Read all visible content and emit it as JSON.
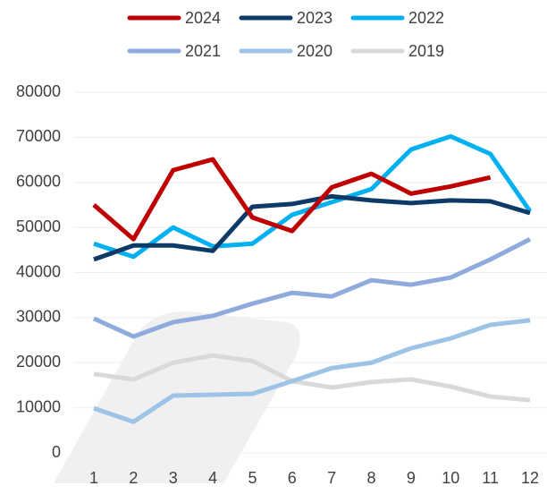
{
  "chart_data": {
    "type": "line",
    "categories": [
      "1",
      "2",
      "3",
      "4",
      "5",
      "6",
      "7",
      "8",
      "9",
      "10",
      "11",
      "12"
    ],
    "series": [
      {
        "name": "2024",
        "color": "#c00000",
        "values": [
          55000,
          47400,
          62700,
          65100,
          52200,
          49200,
          58900,
          61900,
          57500,
          59100,
          61100,
          null
        ]
      },
      {
        "name": "2023",
        "color": "#0e3a68",
        "values": [
          42900,
          46000,
          46000,
          44800,
          54600,
          55200,
          56900,
          56000,
          55400,
          56000,
          55800,
          53200
        ]
      },
      {
        "name": "2022",
        "color": "#00b0f0",
        "values": [
          46400,
          43500,
          50000,
          45800,
          46400,
          52800,
          55600,
          58500,
          67300,
          70200,
          66300,
          53600
        ]
      },
      {
        "name": "2021",
        "color": "#8faadc",
        "values": [
          29800,
          25800,
          29000,
          30400,
          33100,
          35500,
          34700,
          38300,
          37300,
          38900,
          42900,
          47400
        ]
      },
      {
        "name": "2020",
        "color": "#9dc3e6",
        "values": [
          9900,
          6900,
          12700,
          12900,
          13100,
          15900,
          18800,
          20000,
          23200,
          25400,
          28400,
          29400
        ]
      },
      {
        "name": "2019",
        "color": "#d9d9d9",
        "values": [
          17500,
          16300,
          20000,
          21600,
          20400,
          15900,
          14500,
          15700,
          16300,
          14700,
          12500,
          11700
        ]
      }
    ],
    "ylim": [
      0,
      80000
    ],
    "yticks": [
      0,
      10000,
      20000,
      30000,
      40000,
      50000,
      60000,
      70000,
      80000
    ],
    "grid": true
  }
}
